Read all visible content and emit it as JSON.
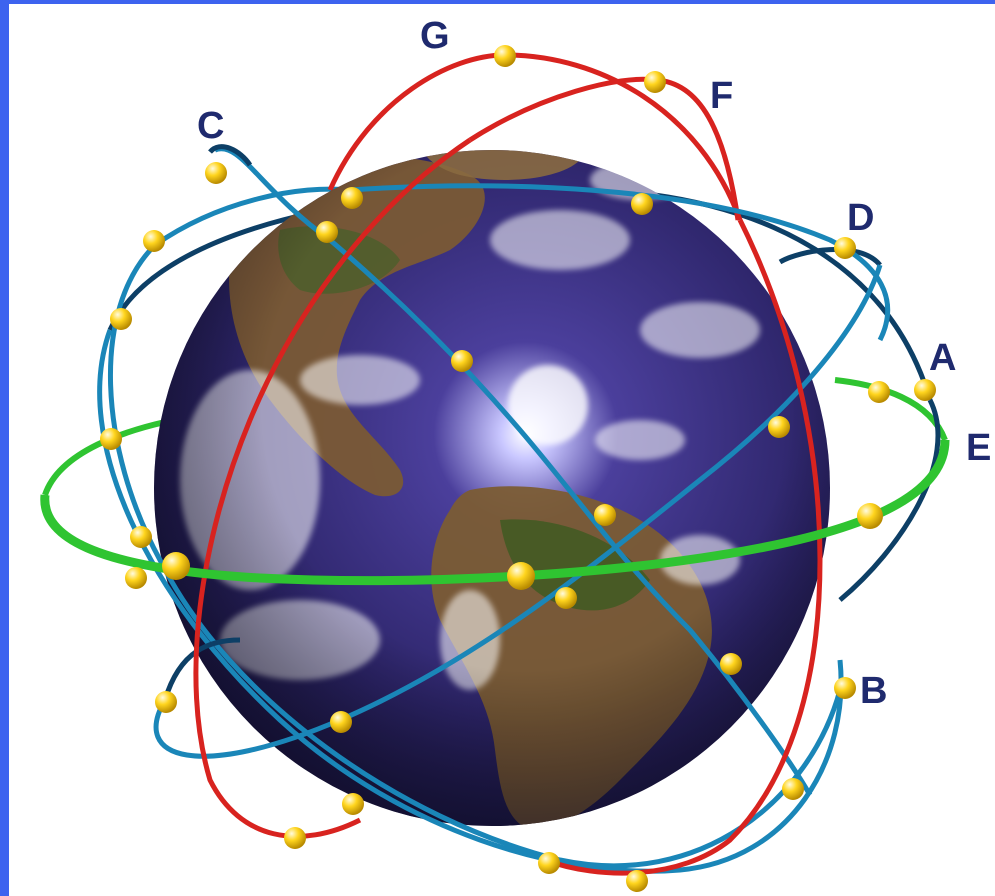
{
  "diagram": {
    "orbit_labels": {
      "A": "A",
      "B": "B",
      "C": "C",
      "D": "D",
      "E": "E",
      "F": "F",
      "G": "G"
    },
    "colors": {
      "background_border": "#3d63ef",
      "globe_ocean": "#3a2d7a",
      "orbit_blue": "#1a86b8",
      "orbit_dark_blue": "#0d3f66",
      "orbit_red": "#d8231f",
      "orbit_green": "#2fc431",
      "satellite_yellow": "#ffd51e",
      "label_navy": "#1f2a6e"
    },
    "icons": [
      "globe-icon",
      "satellite-icon"
    ]
  }
}
